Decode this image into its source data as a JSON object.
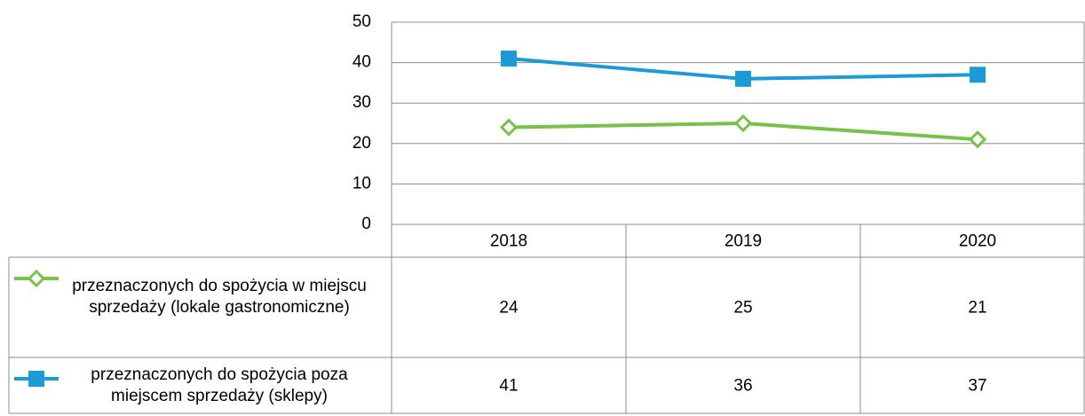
{
  "chart_data": {
    "type": "line",
    "categories": [
      "2018",
      "2019",
      "2020"
    ],
    "series": [
      {
        "name": "przeznaczonych do spożycia w miejscu sprzedaży (lokale gastronomiczne)",
        "color": "#78c14a",
        "marker": "diamond-open",
        "values": [
          24,
          25,
          21
        ]
      },
      {
        "name": "przeznaczonych do spożycia poza miejscem sprzedaży (sklepy)",
        "color": "#1b9ad6",
        "marker": "square",
        "values": [
          41,
          36,
          37
        ]
      }
    ],
    "ylim": [
      0,
      50
    ],
    "yticks": [
      0,
      10,
      20,
      30,
      40,
      50
    ],
    "grid": true,
    "data_table": true
  }
}
